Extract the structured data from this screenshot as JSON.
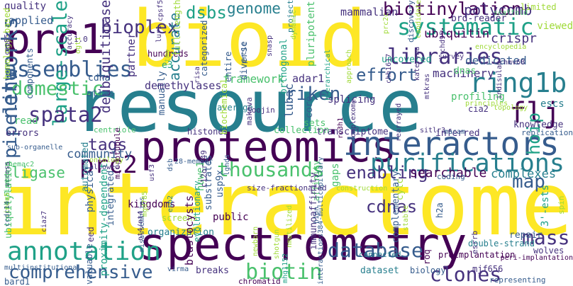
{
  "colors": {
    "background": "#ffffff",
    "palette": [
      "#440154",
      "#46327e",
      "#365c8d",
      "#277f8e",
      "#1fa187",
      "#4ac16d",
      "#a0da39",
      "#fde725"
    ]
  },
  "words": [
    {
      "text": "interactome",
      "color": "#fde725"
    },
    {
      "text": "resource",
      "color": "#277f8e"
    },
    {
      "text": "bioid",
      "color": "#fde725"
    },
    {
      "text": "proteomics",
      "color": "#440154"
    },
    {
      "text": "spectrometry",
      "color": "#440154"
    },
    {
      "text": "prc1",
      "color": "#440154"
    },
    {
      "text": "interactors",
      "color": "#365c8d"
    },
    {
      "text": "annotation",
      "color": "#1fa187"
    },
    {
      "text": "networks",
      "color": "#365c8d"
    },
    {
      "text": "purifications",
      "color": "#277f8e"
    },
    {
      "text": "comprehensive",
      "color": "#365c8d"
    },
    {
      "text": "assemblies",
      "color": "#365c8d"
    },
    {
      "text": "systematic",
      "color": "#1fa187"
    },
    {
      "text": "large-scale",
      "color": "#1fa187"
    },
    {
      "text": "biotinylation",
      "color": "#440154"
    },
    {
      "text": "ring1b",
      "color": "#277f8e"
    },
    {
      "text": "libraries",
      "color": "#46327e"
    },
    {
      "text": "spata2",
      "color": "#46327e"
    },
    {
      "text": "domestic",
      "color": "#4ac16d"
    },
    {
      "text": "bioplex",
      "color": "#46327e"
    },
    {
      "text": "thousands",
      "color": "#4ac16d"
    },
    {
      "text": "enabling",
      "color": "#46327e"
    },
    {
      "text": "database",
      "color": "#365c8d"
    },
    {
      "text": "biotin",
      "color": "#4ac16d"
    },
    {
      "text": "clones",
      "color": "#46327e"
    },
    {
      "text": "pipeline",
      "color": "#365c8d"
    },
    {
      "text": "mass",
      "color": "#46327e"
    },
    {
      "text": "prc2",
      "color": "#440154"
    },
    {
      "text": "riken",
      "color": "#365c8d"
    },
    {
      "text": "effort",
      "color": "#365c8d"
    },
    {
      "text": "accurate",
      "color": "#277f8e"
    },
    {
      "text": "flj",
      "color": "#440154"
    },
    {
      "text": "hoip",
      "color": "#1fa187"
    },
    {
      "text": "map",
      "color": "#365c8d"
    },
    {
      "text": "cdnas",
      "color": "#46327e"
    },
    {
      "text": "tags",
      "color": "#46327e"
    },
    {
      "text": "genome",
      "color": "#277f8e"
    },
    {
      "text": "dsbs",
      "color": "#1fa187"
    },
    {
      "text": "polycomb",
      "color": "#46327e"
    },
    {
      "text": "ubiquitin",
      "color": "#440154"
    },
    {
      "text": "deubiquitinase",
      "color": "#46327e"
    },
    {
      "text": "ligase",
      "color": "#4ac16d"
    },
    {
      "text": "community",
      "color": "#365c8d"
    },
    {
      "text": "searchable",
      "color": "#440154"
    },
    {
      "text": "complexes",
      "color": "#277f8e"
    },
    {
      "text": "framework",
      "color": "#4ac16d"
    },
    {
      "text": "machinery",
      "color": "#46327e"
    },
    {
      "text": "mammalian",
      "color": "#46327e"
    },
    {
      "text": "dedicated",
      "color": "#365c8d"
    },
    {
      "text": "uncovered",
      "color": "#1fa187"
    },
    {
      "text": "crispr",
      "color": "#46327e"
    },
    {
      "text": "brd-reader",
      "color": "#46327e"
    },
    {
      "text": "limited",
      "color": "#a0da39"
    },
    {
      "text": "viewed",
      "color": "#a0da39"
    },
    {
      "text": "quality",
      "color": "#46327e"
    },
    {
      "text": "applied",
      "color": "#365c8d"
    },
    {
      "text": "hundreds",
      "color": "#440154"
    },
    {
      "text": "partner",
      "color": "#46327e"
    },
    {
      "text": "average",
      "color": "#277f8e"
    },
    {
      "text": "entire",
      "color": "#365c8d"
    },
    {
      "text": "diverse",
      "color": "#365c8d"
    },
    {
      "text": "pluripotent",
      "color": "#4ac16d"
    },
    {
      "text": "project",
      "color": "#277f8e"
    },
    {
      "text": "full-length",
      "color": "#a0da39"
    },
    {
      "text": "components",
      "color": "#365c8d"
    },
    {
      "text": "homology-based",
      "color": "#a0da39"
    },
    {
      "text": "cdna",
      "color": "#365c8d"
    },
    {
      "text": "e3",
      "color": "#1fa187"
    },
    {
      "text": "adar1",
      "color": "#46327e"
    },
    {
      "text": "dnas",
      "color": "#4ac16d"
    },
    {
      "text": "profiling",
      "color": "#4ac16d"
    },
    {
      "text": "read",
      "color": "#4ac16d"
    },
    {
      "text": "errors",
      "color": "#46327e"
    },
    {
      "text": "atlas",
      "color": "#365c8d"
    },
    {
      "text": "manually",
      "color": "#365c8d"
    },
    {
      "text": "demethylases",
      "color": "#46327e"
    },
    {
      "text": "categorized",
      "color": "#365c8d"
    },
    {
      "text": "orthogonal",
      "color": "#1fa187"
    },
    {
      "text": "lubac",
      "color": "#365c8d"
    },
    {
      "text": "core",
      "color": "#365c8d"
    },
    {
      "text": "splicing",
      "color": "#46327e"
    },
    {
      "text": "sets",
      "color": "#4ac16d"
    },
    {
      "text": "centriole",
      "color": "#4ac16d"
    },
    {
      "text": "histones",
      "color": "#46327e"
    },
    {
      "text": "biochemical",
      "color": "#a0da39"
    },
    {
      "text": "collection",
      "color": "#4ac16d"
    },
    {
      "text": "transcriptome",
      "color": "#46327e"
    },
    {
      "text": "inferred",
      "color": "#46327e"
    },
    {
      "text": "knowledge",
      "color": "#46327e"
    },
    {
      "text": "replication",
      "color": "#365c8d"
    },
    {
      "text": "escs",
      "color": "#277f8e"
    },
    {
      "text": "cia2",
      "color": "#46327e"
    },
    {
      "text": "ubiquitylation",
      "color": "#4ac16d"
    },
    {
      "text": "substrates",
      "color": "#365c8d"
    },
    {
      "text": "public",
      "color": "#440154"
    },
    {
      "text": "usp9x",
      "color": "#365c8d"
    },
    {
      "text": "kingdoms",
      "color": "#440154"
    },
    {
      "text": "physical",
      "color": "#365c8d"
    },
    {
      "text": "integrated",
      "color": "#365c8d"
    },
    {
      "text": "automated",
      "color": "#277f8e"
    },
    {
      "text": "organization",
      "color": "#277f8e"
    },
    {
      "text": "screens",
      "color": "#a0da39"
    },
    {
      "text": "affinity",
      "color": "#4ac16d"
    },
    {
      "text": "evolutionary",
      "color": "#1fa187"
    },
    {
      "text": "immunoaffinity",
      "color": "#46327e"
    },
    {
      "text": "complementary",
      "color": "#365c8d"
    },
    {
      "text": "repair",
      "color": "#365c8d"
    },
    {
      "text": "3'-ests",
      "color": "#1fa187"
    },
    {
      "text": "gaps",
      "color": "#4ac16d"
    },
    {
      "text": "huwe1",
      "color": "#4ac16d"
    },
    {
      "text": "cylc",
      "color": "#a0da39"
    },
    {
      "text": "h2a",
      "color": "#365c8d"
    },
    {
      "text": "preimplantation",
      "color": "#440154"
    },
    {
      "text": "double-strand",
      "color": "#277f8e"
    },
    {
      "text": "breaks",
      "color": "#46327e"
    },
    {
      "text": "blastocysts",
      "color": "#440154"
    },
    {
      "text": "proximity-dependent",
      "color": "#1fa187"
    },
    {
      "text": "valuable",
      "color": "#365c8d"
    },
    {
      "text": "chromatid",
      "color": "#440154"
    },
    {
      "text": "dataset",
      "color": "#277f8e"
    },
    {
      "text": "biology",
      "color": "#365c8d"
    },
    {
      "text": "bard1",
      "color": "#365c8d"
    },
    {
      "text": "eed",
      "color": "#46327e"
    },
    {
      "text": "wolves",
      "color": "#46327e"
    },
    {
      "text": "roq",
      "color": "#440154"
    },
    {
      "text": "mjf656",
      "color": "#46327e"
    },
    {
      "text": "esrrb",
      "color": "#46327e"
    },
    {
      "text": "connected",
      "color": "#277f8e"
    },
    {
      "text": "newborn",
      "color": "#a0da39"
    },
    {
      "text": "multiinstitutional",
      "color": "#365c8d"
    },
    {
      "text": "virma",
      "color": "#365c8d"
    },
    {
      "text": "mhg1152",
      "color": "#1fa187"
    },
    {
      "text": "interactions384-multicapillary",
      "color": "#365c8d"
    },
    {
      "text": "representing",
      "color": "#365c8d"
    },
    {
      "text": "peri-implantation",
      "color": "#440154"
    },
    {
      "text": "spin",
      "color": "#a0da39"
    },
    {
      "text": "microtubule",
      "color": "#440154"
    },
    {
      "text": "size-fractionated",
      "color": "#46327e"
    },
    {
      "text": "construction",
      "color": "#a0da39"
    },
    {
      "text": "misassemblies",
      "color": "#365c8d"
    },
    {
      "text": "shotgun",
      "color": "#a0da39"
    },
    {
      "text": "coding",
      "color": "#365c8d"
    },
    {
      "text": "c12orf49",
      "color": "#46327e"
    },
    {
      "text": "allowed",
      "color": "#46327e"
    },
    {
      "text": "ontology",
      "color": "#a0da39"
    },
    {
      "text": "28-member",
      "color": "#365c8d"
    },
    {
      "text": "sub-organelle",
      "color": "#365c8d"
    },
    {
      "text": "rhemac2",
      "color": "#4ac16d"
    },
    {
      "text": "access",
      "color": "#46327e"
    },
    {
      "text": "brainmap",
      "color": "#4ac16d"
    },
    {
      "text": "simda5",
      "color": "#a0da39"
    },
    {
      "text": "ccdc14",
      "color": "#365c8d"
    },
    {
      "text": "ciaz7",
      "color": "#46327e"
    },
    {
      "text": "mgd785",
      "color": "#a0da39"
    },
    {
      "text": "nt4/nt4",
      "color": "#46327e"
    },
    {
      "text": "esb2",
      "color": "#277f8e"
    },
    {
      "text": "usf3",
      "color": "#46327e"
    },
    {
      "text": "dsb",
      "color": "#365c8d"
    },
    {
      "text": "lgnds",
      "color": "#365c8d"
    },
    {
      "text": "soojin",
      "color": "#46327e"
    },
    {
      "text": "makova",
      "color": "#46327e"
    },
    {
      "text": "rc3h1",
      "color": "#440154"
    },
    {
      "text": "complexome",
      "color": "#46327e"
    },
    {
      "text": "rearrayed",
      "color": "#46327e"
    },
    {
      "text": "sitlr3",
      "color": "#46327e"
    },
    {
      "text": "macam",
      "color": "#365c8d"
    },
    {
      "text": "indisulam",
      "color": "#46327e"
    },
    {
      "text": "topology",
      "color": "#a0da39"
    },
    {
      "text": "principles",
      "color": "#a0da39"
    },
    {
      "text": "mtkras",
      "color": "#46327e"
    },
    {
      "text": "hierarchical",
      "color": "#1fa187"
    },
    {
      "text": "approach",
      "color": "#a0da39"
    },
    {
      "text": "chd95",
      "color": "#46327e"
    },
    {
      "text": "encyclopedia",
      "color": "#a0da39"
    },
    {
      "text": "survey",
      "color": "#46327e"
    },
    {
      "text": "hmv68",
      "color": "#46327e"
    },
    {
      "text": "discovery",
      "color": "#365c8d"
    },
    {
      "text": "scaffold",
      "color": "#4ac16d"
    },
    {
      "text": "chh1617",
      "color": "#46327e"
    },
    {
      "text": "kateryna",
      "color": "#46327e"
    },
    {
      "text": "candidate",
      "color": "#a0da39"
    },
    {
      "text": "prc2c",
      "color": "#a0da39"
    },
    {
      "text": "prc1c",
      "color": "#365c8d"
    },
    {
      "text": "snasp",
      "color": "#46327e"
    },
    {
      "text": "cpsf5",
      "color": "#46327e"
    },
    {
      "text": "lur1",
      "color": "#46327e"
    },
    {
      "text": "dynamic",
      "color": "#a0da39"
    },
    {
      "text": "ltmo",
      "color": "#a0da39"
    },
    {
      "text": "cr_1.0",
      "color": "#46327e"
    },
    {
      "text": "accuracy",
      "color": "#46327e"
    },
    {
      "text": "ogt1",
      "color": "#a0da39"
    },
    {
      "text": "cep85",
      "color": "#46327e"
    },
    {
      "text": "risa",
      "color": "#46327e"
    },
    {
      "text": "stable",
      "color": "#a0da39"
    },
    {
      "text": "h1pn",
      "color": "#365c8d"
    },
    {
      "text": "nmutilized",
      "color": "#a0da39"
    },
    {
      "text": "rccd1",
      "color": "#46327e"
    }
  ]
}
